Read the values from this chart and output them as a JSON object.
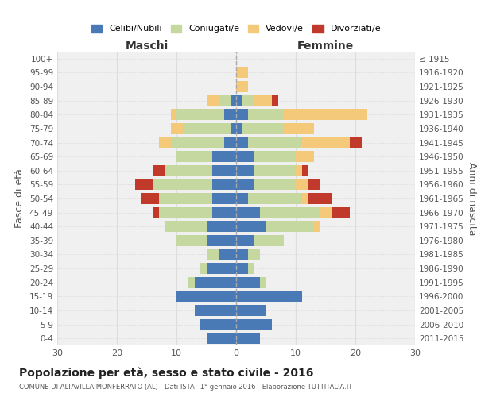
{
  "age_groups": [
    "0-4",
    "5-9",
    "10-14",
    "15-19",
    "20-24",
    "25-29",
    "30-34",
    "35-39",
    "40-44",
    "45-49",
    "50-54",
    "55-59",
    "60-64",
    "65-69",
    "70-74",
    "75-79",
    "80-84",
    "85-89",
    "90-94",
    "95-99",
    "100+"
  ],
  "birth_years": [
    "2011-2015",
    "2006-2010",
    "2001-2005",
    "1996-2000",
    "1991-1995",
    "1986-1990",
    "1981-1985",
    "1976-1980",
    "1971-1975",
    "1966-1970",
    "1961-1965",
    "1956-1960",
    "1951-1955",
    "1946-1950",
    "1941-1945",
    "1936-1940",
    "1931-1935",
    "1926-1930",
    "1921-1925",
    "1916-1920",
    "≤ 1915"
  ],
  "males": {
    "celibi": [
      5,
      6,
      7,
      10,
      7,
      5,
      3,
      5,
      5,
      4,
      4,
      4,
      4,
      4,
      2,
      1,
      2,
      1,
      0,
      0,
      0
    ],
    "coniugati": [
      0,
      0,
      0,
      0,
      1,
      1,
      2,
      5,
      7,
      9,
      9,
      10,
      8,
      6,
      9,
      8,
      8,
      2,
      0,
      0,
      0
    ],
    "vedovi": [
      0,
      0,
      0,
      0,
      0,
      0,
      0,
      0,
      0,
      0,
      0,
      0,
      0,
      0,
      2,
      2,
      1,
      2,
      0,
      0,
      0
    ],
    "divorziati": [
      0,
      0,
      0,
      0,
      0,
      0,
      0,
      0,
      0,
      1,
      3,
      3,
      2,
      0,
      0,
      0,
      0,
      0,
      0,
      0,
      0
    ]
  },
  "females": {
    "nubili": [
      4,
      6,
      5,
      11,
      4,
      2,
      2,
      3,
      5,
      4,
      2,
      3,
      3,
      3,
      2,
      1,
      2,
      1,
      0,
      0,
      0
    ],
    "coniugate": [
      0,
      0,
      0,
      0,
      1,
      1,
      2,
      5,
      8,
      10,
      9,
      7,
      7,
      7,
      9,
      7,
      6,
      2,
      0,
      0,
      0
    ],
    "vedove": [
      0,
      0,
      0,
      0,
      0,
      0,
      0,
      0,
      1,
      2,
      1,
      2,
      1,
      3,
      8,
      5,
      14,
      3,
      2,
      2,
      0
    ],
    "divorziate": [
      0,
      0,
      0,
      0,
      0,
      0,
      0,
      0,
      0,
      3,
      4,
      2,
      1,
      0,
      2,
      0,
      0,
      1,
      0,
      0,
      0
    ]
  },
  "colors": {
    "celibi": "#4a7ab5",
    "coniugati": "#c5d8a0",
    "vedovi": "#f5c97a",
    "divorziati": "#c0392b"
  },
  "title": "Popolazione per età, sesso e stato civile - 2016",
  "subtitle": "COMUNE DI ALTAVILLA MONFERRATO (AL) - Dati ISTAT 1° gennaio 2016 - Elaborazione TUTTITALIA.IT",
  "xlabel_left": "Maschi",
  "xlabel_right": "Femmine",
  "ylabel_left": "Fasce di età",
  "ylabel_right": "Anni di nascita",
  "xlim": 30,
  "bg_color": "#f0f0f0",
  "grid_color": "#dddddd"
}
